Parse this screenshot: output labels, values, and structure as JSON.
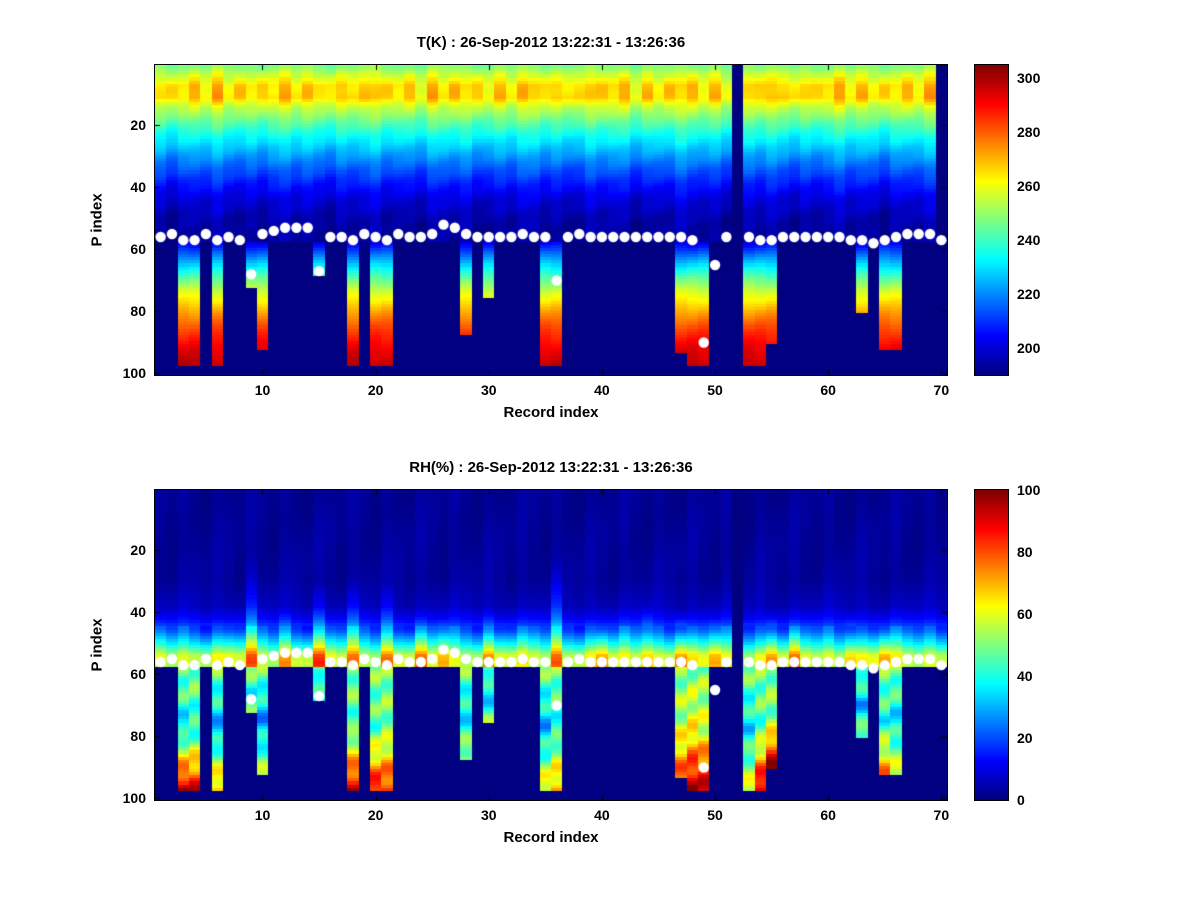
{
  "colors": {
    "background": "#ffffff",
    "axis": "#000000",
    "surface_dot": "#ffffff"
  },
  "chart_data": [
    {
      "type": "heatmap",
      "title": "T(K) : 26-Sep-2012 13:22:31 - 13:26:36",
      "xlabel": "Record index",
      "ylabel": "P index",
      "x_ticks": [
        10,
        20,
        30,
        40,
        50,
        60,
        70
      ],
      "y_ticks": [
        20,
        40,
        60,
        80,
        100
      ],
      "n_records": 70,
      "n_levels": 100,
      "y_axis_reversed": true,
      "colormap": "jet",
      "caxis": [
        190,
        305
      ],
      "colorbar_ticks": [
        200,
        220,
        240,
        260,
        280,
        300
      ],
      "profile": [
        [
          1,
          248
        ],
        [
          4,
          257
        ],
        [
          7,
          266
        ],
        [
          11,
          267
        ],
        [
          14,
          256
        ],
        [
          18,
          246
        ],
        [
          22,
          237
        ],
        [
          27,
          227
        ],
        [
          32,
          218
        ],
        [
          38,
          208
        ],
        [
          44,
          200
        ],
        [
          50,
          195
        ],
        [
          57,
          193
        ]
      ],
      "deep_profile": [
        [
          57,
          200
        ],
        [
          62,
          218
        ],
        [
          68,
          240
        ],
        [
          74,
          258
        ],
        [
          80,
          272
        ],
        [
          86,
          284
        ],
        [
          92,
          293
        ],
        [
          97,
          298
        ]
      ],
      "masked_records": [
        52,
        70
      ]
    },
    {
      "type": "heatmap",
      "title": "RH(%) : 26-Sep-2012 13:22:31 - 13:26:36",
      "xlabel": "Record index",
      "ylabel": "P index",
      "x_ticks": [
        10,
        20,
        30,
        40,
        50,
        60,
        70
      ],
      "y_ticks": [
        20,
        40,
        60,
        80,
        100
      ],
      "n_records": 70,
      "n_levels": 100,
      "y_axis_reversed": true,
      "colormap": "jet",
      "caxis": [
        0,
        100
      ],
      "colorbar_ticks": [
        0,
        20,
        40,
        60,
        80,
        100
      ],
      "profile": [
        [
          1,
          2
        ],
        [
          30,
          3
        ],
        [
          38,
          6
        ],
        [
          42,
          12
        ],
        [
          46,
          22
        ],
        [
          50,
          38
        ],
        [
          52,
          48
        ],
        [
          54,
          58
        ],
        [
          56,
          60
        ],
        [
          57,
          58
        ]
      ],
      "masked_records": [
        52
      ],
      "streaks": [
        {
          "record": 9,
          "top": 20,
          "rh": 18
        },
        {
          "record": 12,
          "top": 38,
          "rh": 15
        },
        {
          "record": 15,
          "top": 30,
          "rh": 20
        },
        {
          "record": 18,
          "top": 28,
          "rh": 16
        },
        {
          "record": 21,
          "top": 30,
          "rh": 18
        },
        {
          "record": 24,
          "top": 40,
          "rh": 14
        },
        {
          "record": 26,
          "top": 42,
          "rh": 16
        },
        {
          "record": 30,
          "top": 38,
          "rh": 14
        },
        {
          "record": 36,
          "top": 22,
          "rh": 20
        },
        {
          "record": 40,
          "top": 44,
          "rh": 12
        },
        {
          "record": 44,
          "top": 36,
          "rh": 15
        },
        {
          "record": 47,
          "top": 40,
          "rh": 18
        },
        {
          "record": 50,
          "top": 42,
          "rh": 15
        },
        {
          "record": 55,
          "top": 40,
          "rh": 16
        },
        {
          "record": 57,
          "top": 42,
          "rh": 14
        },
        {
          "record": 62,
          "top": 40,
          "rh": 13
        },
        {
          "record": 65,
          "top": 44,
          "rh": 14
        }
      ]
    }
  ],
  "records": {
    "count": 70,
    "dot_p": [
      56,
      55,
      57,
      57,
      55,
      57,
      56,
      57,
      68,
      55,
      54,
      53,
      53,
      53,
      67,
      56,
      56,
      57,
      55,
      56,
      57,
      55,
      56,
      56,
      55,
      52,
      53,
      55,
      56,
      56,
      56,
      56,
      55,
      56,
      56,
      70,
      56,
      55,
      56,
      56,
      56,
      56,
      56,
      56,
      56,
      56,
      56,
      57,
      90,
      65,
      56,
      null,
      56,
      57,
      57,
      56,
      56,
      56,
      56,
      56,
      56,
      57,
      57,
      58,
      57,
      56,
      55,
      55,
      55,
      57
    ],
    "data_bottom": [
      57,
      57,
      97,
      97,
      57,
      97,
      57,
      57,
      72,
      92,
      57,
      57,
      57,
      57,
      68,
      57,
      57,
      97,
      57,
      97,
      97,
      57,
      57,
      57,
      57,
      57,
      57,
      87,
      57,
      75,
      57,
      57,
      57,
      57,
      97,
      97,
      57,
      57,
      57,
      57,
      57,
      57,
      57,
      57,
      57,
      57,
      93,
      97,
      97,
      57,
      57,
      57,
      97,
      97,
      90,
      57,
      57,
      57,
      57,
      57,
      57,
      57,
      80,
      57,
      92,
      92,
      57,
      57,
      57,
      57
    ],
    "deep_rh": [
      {
        "record": 3,
        "mid": 35,
        "bottom": 95
      },
      {
        "record": 4,
        "mid": 40,
        "bottom": 90
      },
      {
        "record": 6,
        "mid": 30,
        "bottom": 72
      },
      {
        "record": 9,
        "mid": 40,
        "bottom": 45
      },
      {
        "record": 10,
        "mid": 28,
        "bottom": 55
      },
      {
        "record": 15,
        "mid": 38,
        "bottom": 40
      },
      {
        "record": 18,
        "mid": 45,
        "bottom": 92
      },
      {
        "record": 20,
        "mid": 45,
        "bottom": 88
      },
      {
        "record": 21,
        "mid": 50,
        "bottom": 85
      },
      {
        "record": 28,
        "mid": 35,
        "bottom": 55
      },
      {
        "record": 30,
        "mid": 32,
        "bottom": 50
      },
      {
        "record": 35,
        "mid": 30,
        "bottom": 65
      },
      {
        "record": 36,
        "mid": 40,
        "bottom": 72
      },
      {
        "record": 47,
        "mid": 55,
        "bottom": 80
      },
      {
        "record": 48,
        "mid": 62,
        "bottom": 95
      },
      {
        "record": 49,
        "mid": 58,
        "bottom": 92
      },
      {
        "record": 53,
        "mid": 35,
        "bottom": 60
      },
      {
        "record": 54,
        "mid": 45,
        "bottom": 95
      },
      {
        "record": 55,
        "mid": 50,
        "bottom": 98
      },
      {
        "record": 63,
        "mid": 30,
        "bottom": 50
      },
      {
        "record": 65,
        "mid": 40,
        "bottom": 75
      },
      {
        "record": 66,
        "mid": 35,
        "bottom": 60
      }
    ]
  }
}
